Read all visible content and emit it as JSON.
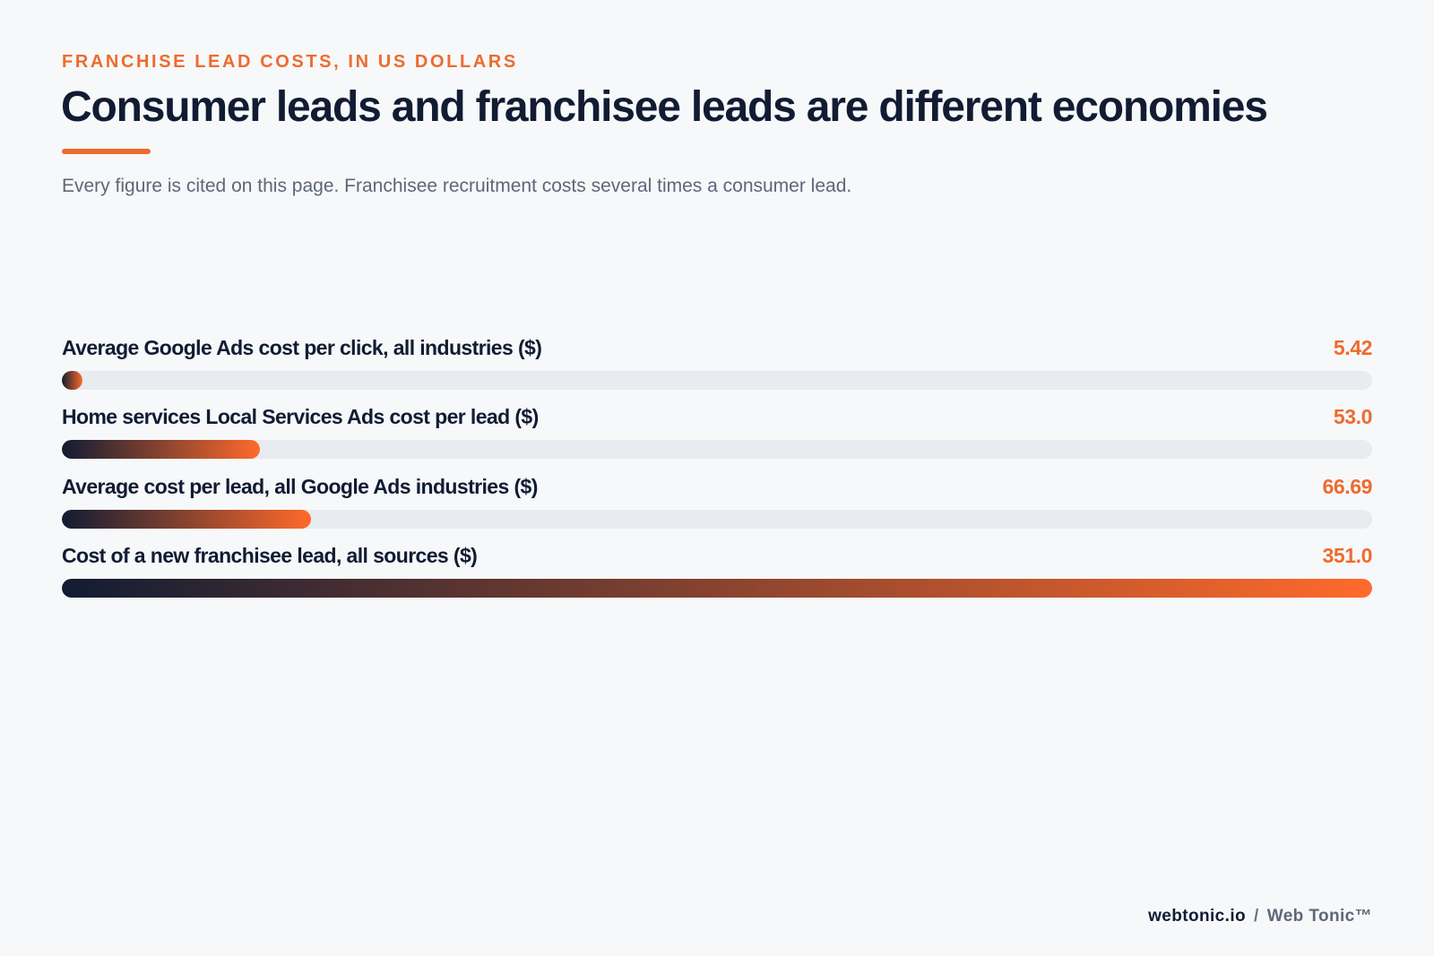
{
  "header": {
    "eyebrow": "FRANCHISE LEAD COSTS, IN US DOLLARS",
    "title": "Consumer leads and franchisee leads are different economies",
    "subtitle": "Every figure is cited on this page. Franchisee recruitment costs several times a consumer lead."
  },
  "chart_data": {
    "type": "bar",
    "orientation": "horizontal",
    "title": "Consumer leads and franchisee leads are different economies",
    "subtitle": "Every figure is cited on this page. Franchisee recruitment costs several times a consumer lead.",
    "categories": [
      "Average Google Ads cost per click, all industries ($)",
      "Home services Local Services Ads cost per lead ($)",
      "Average cost per lead, all Google Ads industries ($)",
      "Cost of a new franchisee lead, all sources ($)"
    ],
    "values": [
      5.42,
      53.0,
      66.69,
      351.0
    ],
    "value_labels": [
      "5.42",
      "53.0",
      "66.69",
      "351.0"
    ],
    "xlim": [
      0,
      351.0
    ],
    "grid": false,
    "colors": {
      "bar_start": "#111c33",
      "bar_end": "#ff6a2b",
      "track": "#e8ebef",
      "label": "#111c33",
      "value": "#ee6b2e"
    }
  },
  "footer": {
    "site": "webtonic.io",
    "separator": "/",
    "brand": "Web Tonic™"
  },
  "colors": {
    "accent": "#ee6b2e",
    "text_primary": "#111c33",
    "text_secondary": "#5d6778",
    "background": "#f7f8fa"
  }
}
